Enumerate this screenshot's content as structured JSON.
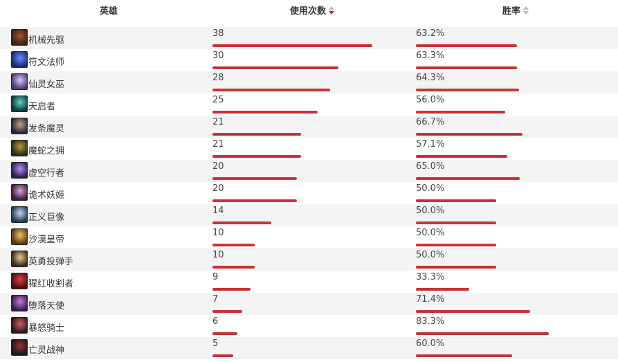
{
  "header": {
    "hero_label": "英雄",
    "uses_label": "使用次数",
    "winrate_label": "胜率"
  },
  "colors": {
    "bar": "#cc3036",
    "sort_active": "#c6262c",
    "sort_inactive": "#bbbbbb",
    "row_alt": "#f4f4f4"
  },
  "heroes": [
    {
      "name": "机械先驱",
      "uses": "38",
      "uses_value": 38,
      "winrate": "63.2%",
      "winrate_value": 63.2,
      "avatar_colors": [
        "#3a2418",
        "#a0522d"
      ]
    },
    {
      "name": "符文法师",
      "uses": "30",
      "uses_value": 30,
      "winrate": "63.3%",
      "winrate_value": 63.3,
      "avatar_colors": [
        "#1a2a6c",
        "#6a8cff"
      ]
    },
    {
      "name": "仙灵女巫",
      "uses": "28",
      "uses_value": 28,
      "winrate": "64.3%",
      "winrate_value": 64.3,
      "avatar_colors": [
        "#4b3a6e",
        "#d9c6ff"
      ]
    },
    {
      "name": "天启者",
      "uses": "25",
      "uses_value": 25,
      "winrate": "56.0%",
      "winrate_value": 56.0,
      "avatar_colors": [
        "#0f3b3a",
        "#5fd3c6"
      ]
    },
    {
      "name": "发条魔灵",
      "uses": "21",
      "uses_value": 21,
      "winrate": "66.7%",
      "winrate_value": 66.7,
      "avatar_colors": [
        "#2d2540",
        "#c0a77a"
      ]
    },
    {
      "name": "魔蛇之拥",
      "uses": "21",
      "uses_value": 21,
      "winrate": "57.1%",
      "winrate_value": 57.1,
      "avatar_colors": [
        "#2a2a18",
        "#b89a3c"
      ]
    },
    {
      "name": "虚空行者",
      "uses": "20",
      "uses_value": 20,
      "winrate": "65.0%",
      "winrate_value": 65.0,
      "avatar_colors": [
        "#2b1f4a",
        "#b48cff"
      ]
    },
    {
      "name": "诡术妖姬",
      "uses": "20",
      "uses_value": 20,
      "winrate": "50.0%",
      "winrate_value": 50.0,
      "avatar_colors": [
        "#3a1f3a",
        "#e0a0d8"
      ]
    },
    {
      "name": "正义巨像",
      "uses": "14",
      "uses_value": 14,
      "winrate": "50.0%",
      "winrate_value": 50.0,
      "avatar_colors": [
        "#1e3a5a",
        "#c9d9e8"
      ]
    },
    {
      "name": "沙漠皇帝",
      "uses": "10",
      "uses_value": 10,
      "winrate": "50.0%",
      "winrate_value": 50.0,
      "avatar_colors": [
        "#5a3a12",
        "#f0c060"
      ]
    },
    {
      "name": "英勇投弹手",
      "uses": "10",
      "uses_value": 10,
      "winrate": "50.0%",
      "winrate_value": 50.0,
      "avatar_colors": [
        "#3a2a1a",
        "#e8c89a"
      ]
    },
    {
      "name": "猩红收割者",
      "uses": "9",
      "uses_value": 9,
      "winrate": "33.3%",
      "winrate_value": 33.3,
      "avatar_colors": [
        "#4a0f12",
        "#e04040"
      ]
    },
    {
      "name": "堕落天使",
      "uses": "7",
      "uses_value": 7,
      "winrate": "71.4%",
      "winrate_value": 71.4,
      "avatar_colors": [
        "#3a1a4a",
        "#c080e0"
      ]
    },
    {
      "name": "暴怒骑士",
      "uses": "6",
      "uses_value": 6,
      "winrate": "83.3%",
      "winrate_value": 83.3,
      "avatar_colors": [
        "#2a1a1a",
        "#d06060"
      ]
    },
    {
      "name": "亡灵战神",
      "uses": "5",
      "uses_value": 5,
      "winrate": "60.0%",
      "winrate_value": 60.0,
      "avatar_colors": [
        "#1a1a1a",
        "#a03030"
      ]
    }
  ]
}
